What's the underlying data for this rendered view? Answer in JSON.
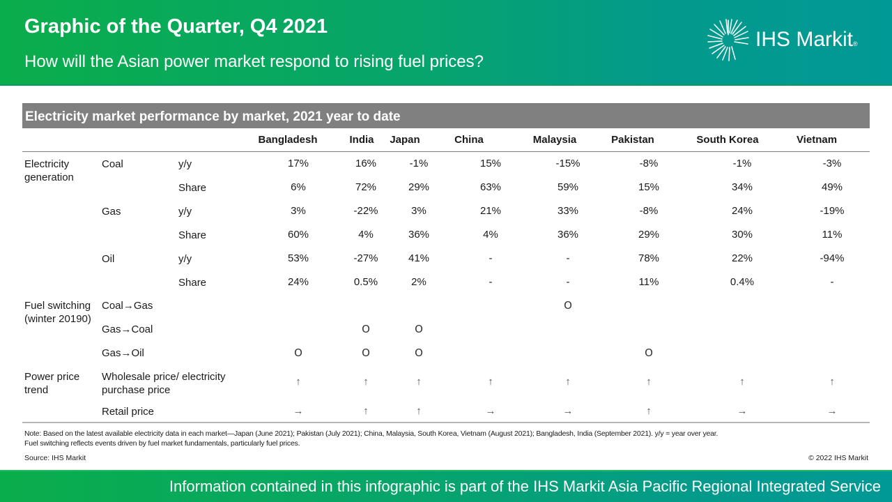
{
  "header": {
    "title": "Graphic of the Quarter, Q4 2021",
    "subtitle": "How will the Asian power market respond to rising fuel prices?",
    "logo_text": "IHS Markit",
    "logo_reg": "®",
    "logo_icon": "starburst-logo-icon"
  },
  "colors": {
    "band_green": "#0aad4b",
    "band_teal": "#019995",
    "table_title_bg": "#808080"
  },
  "table": {
    "title": "Electricity  market performance by market, 2021 year to date",
    "columns": [
      "Bangladesh",
      "India",
      "Japan",
      "China",
      "Malaysia",
      "Pakistan",
      "South Korea",
      "Vietnam"
    ],
    "sections": {
      "generation": {
        "label_line1": "Electricity",
        "label_line2": "generation",
        "coal": {
          "label": "Coal",
          "yy_label": "y/y",
          "share_label": "Share",
          "yy": [
            "17%",
            "16%",
            "-1%",
            "15%",
            "-15%",
            "-8%",
            "-1%",
            "-3%"
          ],
          "share": [
            "6%",
            "72%",
            "29%",
            "63%",
            "59%",
            "15%",
            "34%",
            "49%"
          ]
        },
        "gas": {
          "label": "Gas",
          "yy_label": "y/y",
          "share_label": "Share",
          "yy": [
            "3%",
            "-22%",
            "3%",
            "21%",
            "33%",
            "-8%",
            "24%",
            "-19%"
          ],
          "share": [
            "60%",
            "4%",
            "36%",
            "4%",
            "36%",
            "29%",
            "30%",
            "11%"
          ]
        },
        "oil": {
          "label": "Oil",
          "yy_label": "y/y",
          "share_label": "Share",
          "yy": [
            "53%",
            "-27%",
            "41%",
            "-",
            "-",
            "78%",
            "22%",
            "-94%"
          ],
          "share": [
            "24%",
            "0.5%",
            "2%",
            "-",
            "-",
            "11%",
            "0.4%",
            "-"
          ]
        }
      },
      "fuel_switching": {
        "label_line1": "Fuel switching",
        "label_line2": "(winter 20190)",
        "rows": [
          {
            "label": "Coal→Gas",
            "values": [
              "",
              "",
              "",
              "",
              "O",
              "",
              "",
              ""
            ]
          },
          {
            "label": "Gas→Coal",
            "values": [
              "",
              "O",
              "O",
              "",
              "",
              "",
              "",
              ""
            ]
          },
          {
            "label": "Gas→Oil",
            "values": [
              "O",
              "O",
              "O",
              "",
              "",
              "O",
              "",
              ""
            ]
          }
        ]
      },
      "price_trend": {
        "label_line1": "Power price",
        "label_line2": "trend",
        "wholesale": {
          "label_line1": "Wholesale price/ electricity",
          "label_line2": "purchase price",
          "values": [
            "↑",
            "↑",
            "↑",
            "↑",
            "↑",
            "↑",
            "↑",
            "↑"
          ]
        },
        "retail": {
          "label": "Retail price",
          "values": [
            "→",
            "↑",
            "↑",
            "→",
            "→",
            "↑",
            "→",
            "→"
          ]
        }
      }
    }
  },
  "footer": {
    "note_line1": "Note: Based on the latest available electricity data in each market—Japan (June 2021); Pakistan (July 2021); China, Malaysia, South Korea, Vietnam (August 2021); Bangladesh, India (September 2021). y/y = year over year.",
    "note_line2": "Fuel switching reflects events driven by fuel market fundamentals, particularly fuel prices.",
    "source": "Source: IHS Markit",
    "copyright": "© 2022 IHS Markit",
    "banner": "Information contained in this infographic is part of the IHS Markit Asia Pacific Regional Integrated Service"
  }
}
